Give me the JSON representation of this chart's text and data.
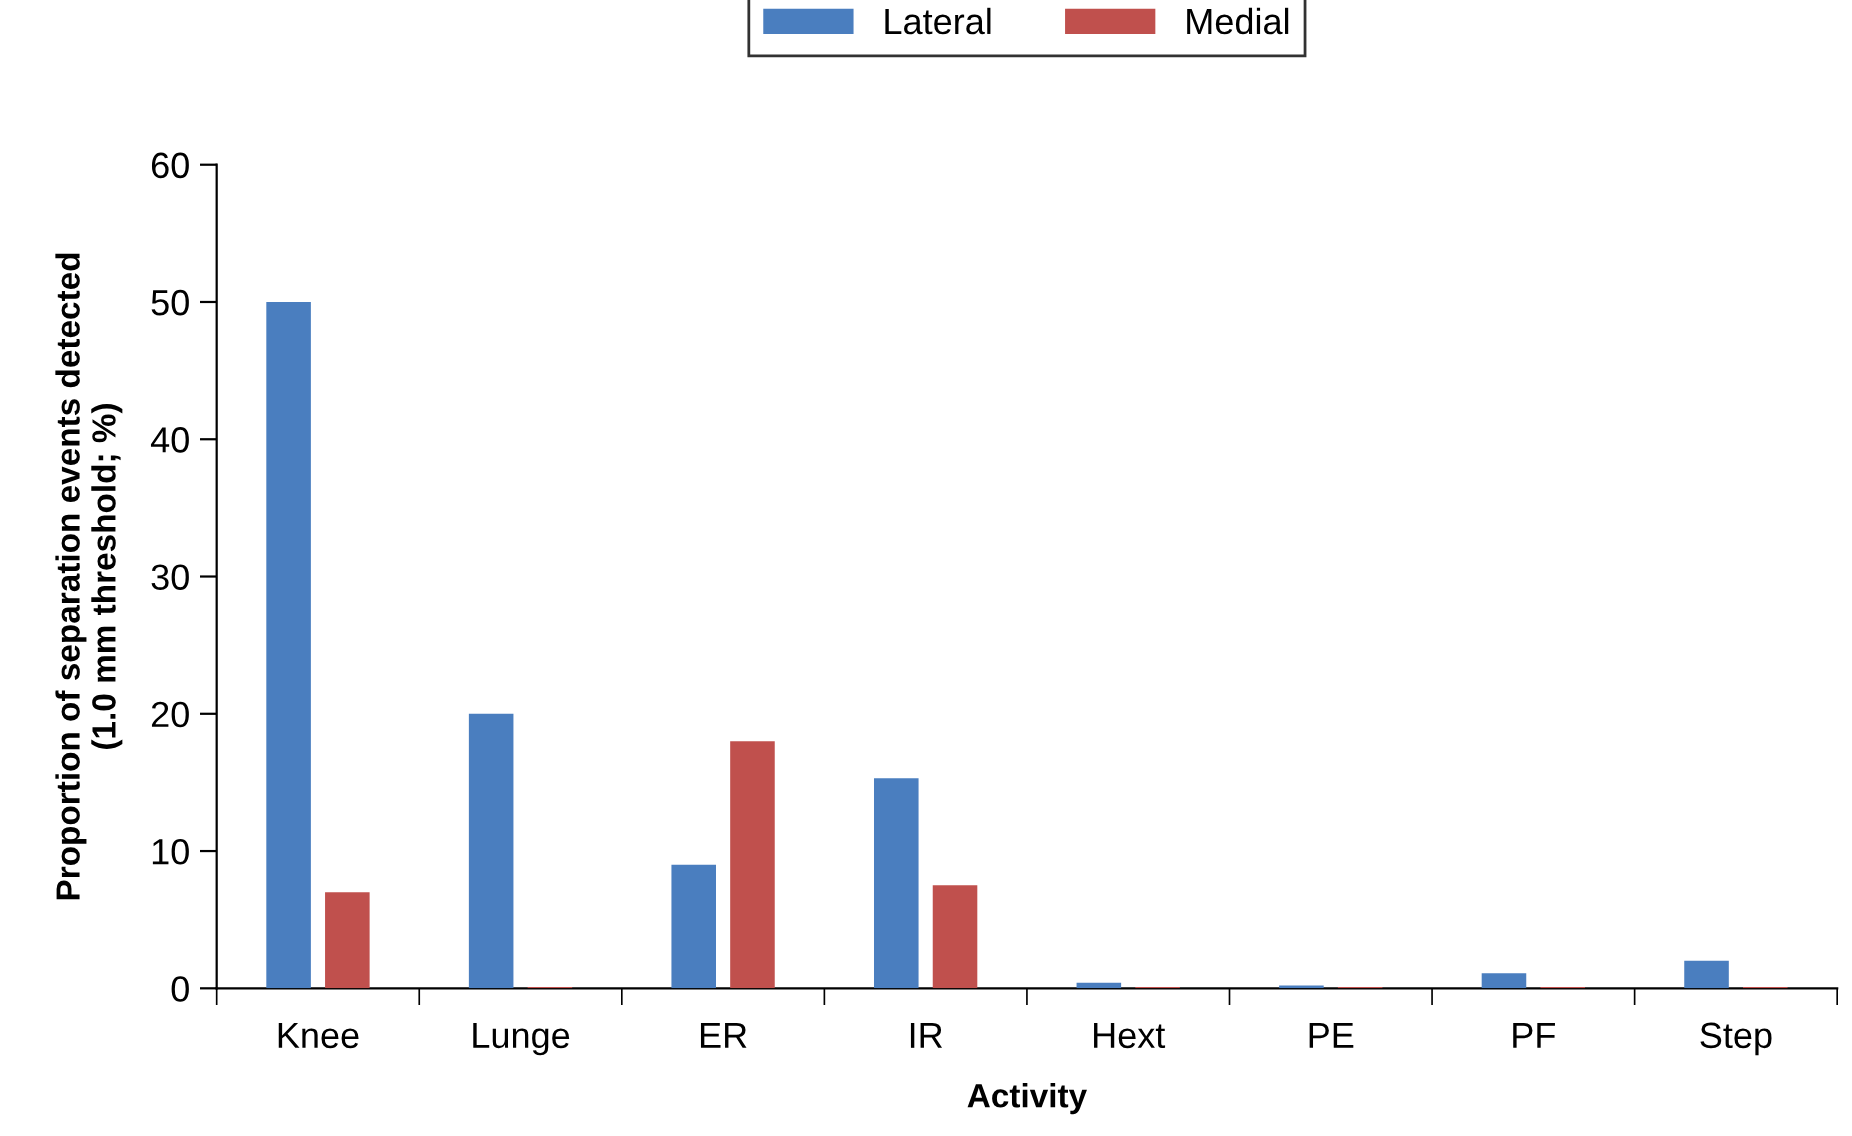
{
  "chart_data": {
    "type": "bar",
    "xlabel": "Activity",
    "ylabel": "Proportion of separation events detected\n(1.0 mm threshold; %)",
    "categories": [
      "Knee",
      "Lunge",
      "ER",
      "IR",
      "Hext",
      "PE",
      "PF",
      "Step"
    ],
    "series": [
      {
        "name": "Lateral",
        "color": "#4a7ebf",
        "values": [
          50,
          20,
          9,
          15.3,
          0.4,
          0.2,
          1.1,
          2.0
        ]
      },
      {
        "name": "Medial",
        "color": "#c0504d",
        "values": [
          7,
          0.1,
          18,
          7.5,
          0.1,
          0.1,
          0.1,
          0.1
        ]
      }
    ],
    "ylim": [
      0,
      60
    ],
    "yticks": [
      0,
      10,
      20,
      30,
      40,
      50,
      60
    ],
    "grid": false,
    "legend": "top"
  }
}
